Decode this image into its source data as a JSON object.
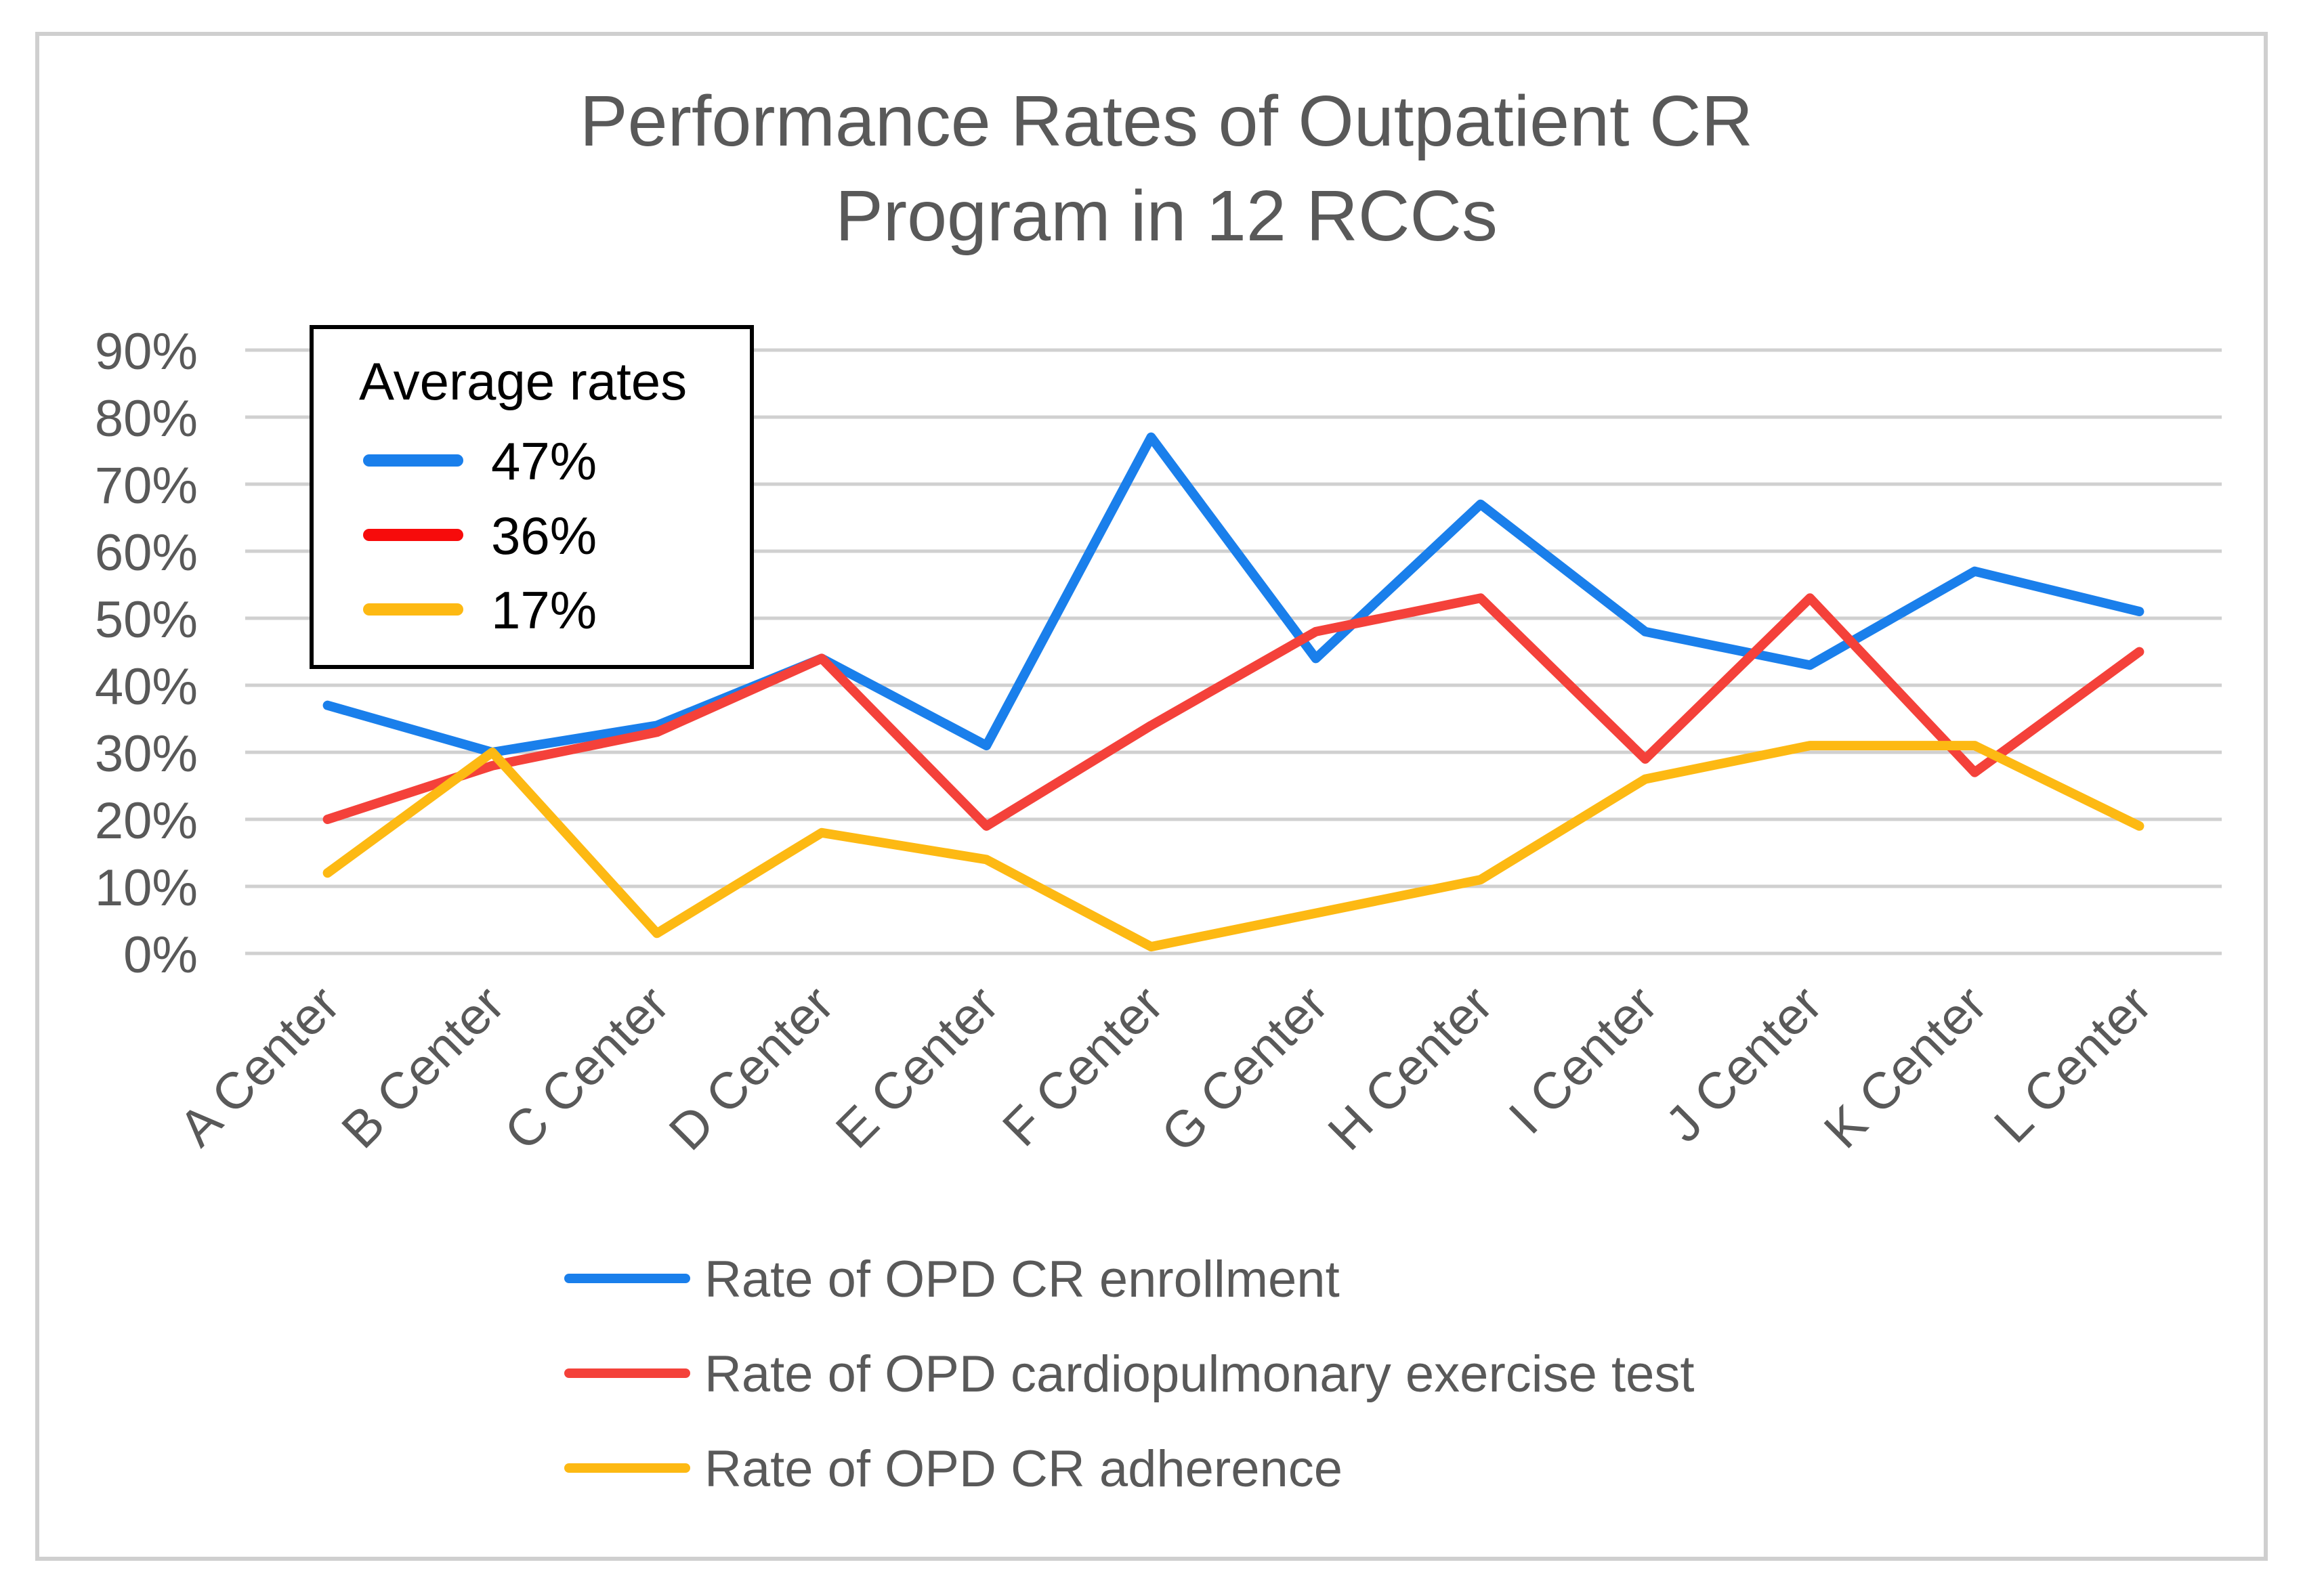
{
  "chart_data": {
    "type": "line",
    "title_lines": [
      "Performance Rates of Outpatient CR",
      "Program in 12 RCCs"
    ],
    "xlabel": "",
    "ylabel": "",
    "ylim": [
      0,
      90
    ],
    "y_ticks": [
      0,
      10,
      20,
      30,
      40,
      50,
      60,
      70,
      80,
      90
    ],
    "y_tick_labels": [
      "0%",
      "10%",
      "20%",
      "30%",
      "40%",
      "50%",
      "60%",
      "70%",
      "80%",
      "90%"
    ],
    "categories": [
      "A Center",
      "B Center",
      "C Center",
      "D Center",
      "E Center",
      "F Center",
      "G Center",
      "H Center",
      "I Center",
      "J Center",
      "K Center",
      "L Center"
    ],
    "grid": true,
    "series": [
      {
        "name": "Rate of OPD CR enrollment",
        "color": "#1A7FEB",
        "values": [
          37,
          30,
          34,
          44,
          31,
          77,
          44,
          67,
          48,
          43,
          57,
          51
        ]
      },
      {
        "name": "Rate of OPD cardiopulmonary exercise test",
        "color": "#F4413A",
        "values": [
          20,
          28,
          33,
          44,
          19,
          34,
          48,
          53,
          29,
          53,
          27,
          45
        ]
      },
      {
        "name": "Rate of OPD CR adherence",
        "color": "#FDB913",
        "values": [
          12,
          30,
          3,
          18,
          14,
          1,
          6,
          11,
          26,
          31,
          31,
          19
        ]
      }
    ],
    "legend_position": "bottom",
    "annotation_box": {
      "title": "Average rates",
      "entries": [
        {
          "label": "47%",
          "color": "#1A7FEB"
        },
        {
          "label": "36%",
          "color": "#F70B0B"
        },
        {
          "label": "17%",
          "color": "#FDB913"
        }
      ],
      "position": "top-left"
    }
  }
}
